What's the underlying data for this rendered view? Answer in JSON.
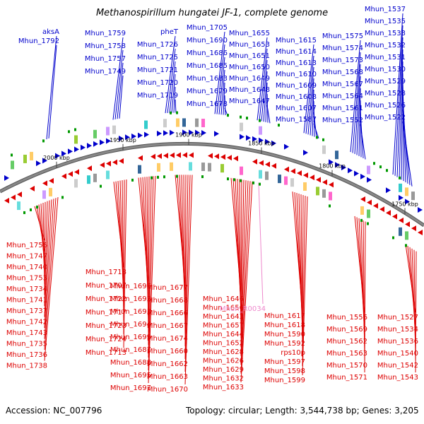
{
  "title": "Methanospirillum hungatei JF-1, complete genome",
  "accession": "Accession: NC_007796",
  "summary": "Topology: circular; Length: 3,544,738 bp; Genes: 3,205",
  "colors": {
    "forward": "#0000cc",
    "reverse": "#dd0000",
    "rna": "#ee88cc",
    "backbone": "#888888",
    "marker": "#009900"
  },
  "kbp_ticks": [
    "2000 kbp",
    "1950 kbp",
    "1900 kbp",
    "1850 kbp",
    "1800 kbp",
    "1750 kbp"
  ],
  "forward_labels": [
    "aksA",
    "Mhun_1792",
    "Mhun_1759",
    "Mhun_1758",
    "Mhun_1757",
    "Mhun_1749",
    "pheT",
    "Mhun_1726",
    "Mhun_1725",
    "Mhun_1721",
    "Mhun_1720",
    "Mhun_1719",
    "Mhun_1705",
    "Mhun_1690",
    "Mhun_1686",
    "Mhun_1685",
    "Mhun_1683",
    "Mhun_1679",
    "Mhun_1678",
    "Mhun_1655",
    "Mhun_1653",
    "Mhun_1651",
    "Mhun_1650",
    "Mhun_1649",
    "Mhun_1648",
    "Mhun_1647",
    "Mhun_1615",
    "Mhun_1614",
    "Mhun_1613",
    "Mhun_1610",
    "Mhun_1609",
    "Mhun_1608",
    "Mhun_1607",
    "Mhun_1587",
    "Mhun_1575",
    "Mhun_1574",
    "Mhun_1573",
    "Mhun_1568",
    "Mhun_1567",
    "Mhun_1564",
    "Mhun_1561",
    "Mhun_1552",
    "Mhun_1537",
    "Mhun_1535",
    "Mhun_1533",
    "Mhun_1532",
    "Mhun_1531",
    "Mhun_1530",
    "Mhun_1529",
    "Mhun_1528",
    "Mhun_1526",
    "Mhun_1522"
  ],
  "reverse_labels": [
    "Mhun_1756",
    "Mhun_1747",
    "Mhun_1740",
    "Mhun_1753",
    "Mhun_1734",
    "Mhun_1741",
    "Mhun_1737",
    "Mhun_1742",
    "Mhun_1743",
    "Mhun_1735",
    "Mhun_1736",
    "Mhun_1738",
    "Mhun_1718",
    "Mhun_1707",
    "Mhun_1722",
    "Mhun_1717",
    "Mhun_1723",
    "Mhun_1724",
    "Mhun_1713",
    "Mhun_1696",
    "Mhun_1692",
    "Mhun_1693",
    "Mhun_1694",
    "Mhun_1699",
    "Mhun_1687",
    "Mhun_1688",
    "Mhun_1695",
    "Mhun_1697",
    "Mhun_1677",
    "Mhun_1668",
    "Mhun_1666",
    "Mhun_1667",
    "Mhun_1674",
    "Mhun_1660",
    "Mhun_1662",
    "Mhun_1663",
    "Mhun_1670",
    "Mhun_1646",
    "Mhun_1656",
    "Mhun_1643",
    "Mhun_1657",
    "Mhun_1644",
    "Mhun_1652",
    "Mhun_1628",
    "Mhun_1626",
    "Mhun_1629",
    "Mhun_1632",
    "Mhun_1633",
    "Mhun_1617",
    "Mhun_1618",
    "Mhun_1590",
    "Mhun_1592",
    "rps10p",
    "Mhun_1597",
    "Mhun_1598",
    "Mhun_1599",
    "Mhun_1556",
    "Mhun_1569",
    "Mhun_1562",
    "Mhun_1563",
    "Mhun_1570",
    "Mhun_1571",
    "Mhun_1527",
    "Mhun_1534",
    "Mhun_1536",
    "Mhun_1540",
    "Mhun_1542",
    "Mhun_1543"
  ],
  "rna_labels": [
    "Mhun_R0034"
  ]
}
